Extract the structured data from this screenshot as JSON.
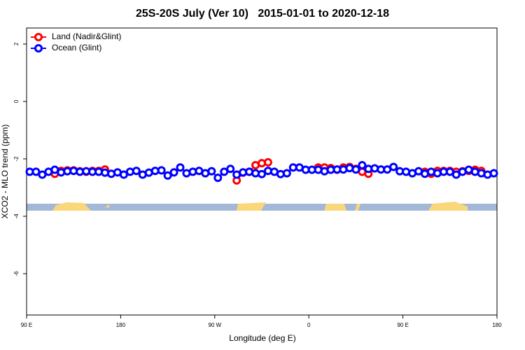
{
  "chart_data": {
    "type": "line",
    "title": "25S-20S July (Ver 10)   2015-01-01 to 2020-12-18",
    "x_label": "Longitude (deg E)",
    "y_label": "XCO2 - MLO trend (ppm)",
    "xlim": [
      90,
      540
    ],
    "ylim": [
      -7.44,
      2.56
    ],
    "xticks": [
      {
        "value": 90,
        "label": "90 E"
      },
      180,
      {
        "value": 270,
        "label": "90 W"
      },
      {
        "value": 360,
        "label": "0"
      },
      {
        "value": 450,
        "label": "90 E"
      },
      {
        "value": 540,
        "label": "180"
      }
    ],
    "yticks": [
      -6,
      -4,
      -2,
      0,
      2
    ],
    "legend": "topleft",
    "x": [
      93,
      99,
      105,
      111,
      117,
      123,
      129,
      135,
      141,
      147,
      153,
      159,
      165,
      171,
      177,
      183,
      189,
      195,
      201,
      207,
      213,
      219,
      225,
      231,
      237,
      243,
      249,
      255,
      261,
      267,
      273,
      279,
      285,
      291,
      297,
      303,
      309,
      315,
      321,
      327,
      333,
      339,
      345,
      351,
      357,
      363,
      369,
      375,
      381,
      387,
      393,
      399,
      405,
      411,
      417,
      423,
      429,
      435,
      441,
      447,
      453,
      459,
      465,
      471,
      477,
      483,
      489,
      495,
      501,
      507,
      513,
      519,
      525,
      531,
      537
    ],
    "series": [
      {
        "name": "Land (Nadir&Glint)",
        "color": "#ff0000",
        "values": [
          null,
          null,
          null,
          null,
          -2.52,
          -2.42,
          -2.4,
          -2.4,
          -2.43,
          -2.45,
          -2.42,
          -2.42,
          -2.37,
          null,
          null,
          null,
          null,
          null,
          null,
          null,
          null,
          null,
          null,
          null,
          null,
          null,
          null,
          null,
          null,
          null,
          null,
          null,
          null,
          -2.75,
          -2.48,
          -2.45,
          -2.22,
          -2.15,
          -2.12,
          null,
          null,
          null,
          null,
          null,
          null,
          null,
          -2.3,
          -2.3,
          -2.32,
          -2.38,
          -2.3,
          -2.28,
          -2.35,
          -2.45,
          -2.52,
          null,
          null,
          null,
          null,
          null,
          null,
          null,
          null,
          -2.45,
          -2.52,
          -2.42,
          -2.42,
          -2.42,
          -2.45,
          -2.43,
          -2.42,
          -2.38,
          -2.42,
          null,
          null
        ]
      },
      {
        "name": "Ocean (Glint)",
        "color": "#0000ff",
        "values": [
          -2.45,
          -2.45,
          -2.55,
          -2.45,
          -2.38,
          -2.47,
          -2.43,
          -2.42,
          -2.45,
          -2.43,
          -2.45,
          -2.45,
          -2.48,
          -2.52,
          -2.47,
          -2.55,
          -2.45,
          -2.42,
          -2.55,
          -2.48,
          -2.42,
          -2.4,
          -2.58,
          -2.47,
          -2.3,
          -2.5,
          -2.45,
          -2.42,
          -2.5,
          -2.43,
          -2.66,
          -2.45,
          -2.35,
          -2.55,
          -2.47,
          -2.45,
          -2.5,
          -2.53,
          -2.42,
          -2.45,
          -2.53,
          -2.5,
          -2.3,
          -2.3,
          -2.38,
          -2.38,
          -2.38,
          -2.43,
          -2.38,
          -2.37,
          -2.37,
          -2.32,
          -2.37,
          -2.22,
          -2.35,
          -2.33,
          -2.37,
          -2.37,
          -2.28,
          -2.43,
          -2.45,
          -2.5,
          -2.43,
          -2.52,
          -2.45,
          -2.5,
          -2.45,
          -2.45,
          -2.55,
          -2.45,
          -2.38,
          -2.45,
          -2.5,
          -2.55,
          -2.5
        ]
      }
    ]
  }
}
